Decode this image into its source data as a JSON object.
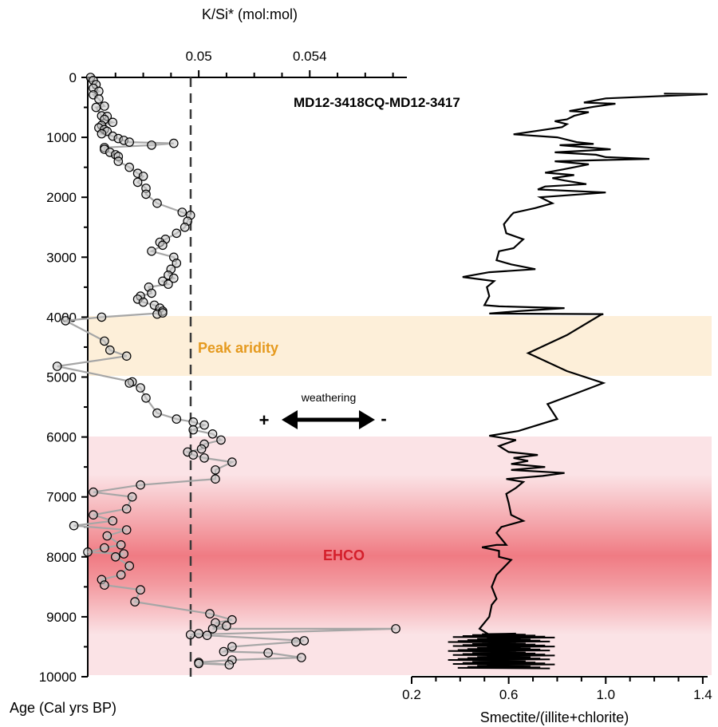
{
  "chart_data": {
    "type": "line",
    "colors": {
      "peak_band": "#fdefd9",
      "ehco_band": "#fbe3e6",
      "ehco_core": "#f07b83",
      "peak_label": "#e59a1f",
      "ehco_label": "#d41f2b",
      "ks_line": "#a6a6a6",
      "marker_fill": "#c8c8c8",
      "smectite_line": "#000000"
    },
    "y_axis": {
      "label": "Age (Cal yrs BP)",
      "range": [
        0,
        10000
      ],
      "ticks": [
        "0",
        "1000",
        "2000",
        "3000",
        "4000",
        "5000",
        "6000",
        "7000",
        "8000",
        "9000",
        "10000"
      ],
      "grid": false
    },
    "top_axis": {
      "label": "K/Si* (mol:mol)",
      "range": [
        0.046,
        0.0575
      ],
      "ticks": [
        "0.05",
        "0.054"
      ]
    },
    "bottom_axis": {
      "label": "Smectite/(illite+chlorite)",
      "range": [
        0.2,
        1.42
      ],
      "ticks": [
        "0.2",
        "0.6",
        "1.0",
        "1.4"
      ]
    },
    "annotations": {
      "core_label": "MD12-3418CQ-MD12-3417",
      "peak_aridity": "Peak aridity",
      "ehco": "EHCO",
      "weathering": "weathering",
      "plus": "+",
      "minus": "-"
    },
    "bands": [
      {
        "name": "Peak aridity",
        "from": 4000,
        "to": 5000
      },
      {
        "name": "EHCO",
        "from": 6000,
        "to": 10000,
        "core_from": 7000,
        "core_to": 9100
      }
    ],
    "dashed_reference": {
      "axis": "top",
      "value": 0.05
    },
    "series": [
      {
        "marker": "open-circle",
        "axis": "top",
        "points": [
          [
            0.0461,
            0
          ],
          [
            0.0462,
            50
          ],
          [
            0.0463,
            120
          ],
          [
            0.0462,
            180
          ],
          [
            0.0464,
            230
          ],
          [
            0.0462,
            290
          ],
          [
            0.0464,
            360
          ],
          [
            0.0466,
            480
          ],
          [
            0.0463,
            500
          ],
          [
            0.0465,
            640
          ],
          [
            0.0467,
            650
          ],
          [
            0.0466,
            700
          ],
          [
            0.0469,
            750
          ],
          [
            0.0465,
            800
          ],
          [
            0.0464,
            840
          ],
          [
            0.0466,
            870
          ],
          [
            0.0467,
            900
          ],
          [
            0.0465,
            940
          ],
          [
            0.0469,
            980
          ],
          [
            0.0471,
            1020
          ],
          [
            0.0473,
            1050
          ],
          [
            0.0475,
            1080
          ],
          [
            0.0491,
            1100
          ],
          [
            0.0483,
            1130
          ],
          [
            0.0466,
            1170
          ],
          [
            0.0466,
            1200
          ],
          [
            0.0468,
            1250
          ],
          [
            0.047,
            1290
          ],
          [
            0.0471,
            1320
          ],
          [
            0.0471,
            1400
          ],
          [
            0.0475,
            1500
          ],
          [
            0.0478,
            1600
          ],
          [
            0.048,
            1650
          ],
          [
            0.0478,
            1750
          ],
          [
            0.0481,
            1850
          ],
          [
            0.0481,
            1950
          ],
          [
            0.0485,
            2100
          ],
          [
            0.0494,
            2250
          ],
          [
            0.0497,
            2300
          ],
          [
            0.0496,
            2400
          ],
          [
            0.0495,
            2500
          ],
          [
            0.0492,
            2600
          ],
          [
            0.0488,
            2700
          ],
          [
            0.0486,
            2750
          ],
          [
            0.0487,
            2800
          ],
          [
            0.0483,
            2900
          ],
          [
            0.0491,
            3000
          ],
          [
            0.0492,
            3100
          ],
          [
            0.049,
            3200
          ],
          [
            0.0489,
            3300
          ],
          [
            0.0491,
            3350
          ],
          [
            0.0487,
            3400
          ],
          [
            0.0489,
            3450
          ],
          [
            0.0482,
            3500
          ],
          [
            0.0483,
            3600
          ],
          [
            0.0479,
            3650
          ],
          [
            0.0478,
            3700
          ],
          [
            0.048,
            3750
          ],
          [
            0.0484,
            3800
          ],
          [
            0.0486,
            3850
          ],
          [
            0.0487,
            3900
          ],
          [
            0.0485,
            3950
          ],
          [
            0.0487,
            3930
          ],
          [
            0.0465,
            4000
          ],
          [
            0.0452,
            4060
          ],
          [
            0.0466,
            4400
          ],
          [
            0.0468,
            4550
          ],
          [
            0.0474,
            4650
          ],
          [
            0.0449,
            4820
          ],
          [
            0.0476,
            5080
          ],
          [
            0.0475,
            5100
          ],
          [
            0.0479,
            5180
          ],
          [
            0.0481,
            5350
          ],
          [
            0.0485,
            5600
          ],
          [
            0.0492,
            5700
          ],
          [
            0.0498,
            5750
          ],
          [
            0.0502,
            5800
          ],
          [
            0.0498,
            5880
          ],
          [
            0.0505,
            5950
          ],
          [
            0.0508,
            6050
          ],
          [
            0.0502,
            6120
          ],
          [
            0.0501,
            6200
          ],
          [
            0.0496,
            6250
          ],
          [
            0.0498,
            6300
          ],
          [
            0.0502,
            6350
          ],
          [
            0.0512,
            6420
          ],
          [
            0.0506,
            6550
          ],
          [
            0.0506,
            6700
          ],
          [
            0.0479,
            6800
          ],
          [
            0.0462,
            6920
          ],
          [
            0.0476,
            7000
          ],
          [
            0.0474,
            7200
          ],
          [
            0.0462,
            7300
          ],
          [
            0.0469,
            7400
          ],
          [
            0.0455,
            7480
          ],
          [
            0.0474,
            7550
          ],
          [
            0.0467,
            7650
          ],
          [
            0.0472,
            7800
          ],
          [
            0.0466,
            7850
          ],
          [
            0.046,
            7920
          ],
          [
            0.0473,
            7950
          ],
          [
            0.047,
            8000
          ],
          [
            0.0475,
            8150
          ],
          [
            0.0472,
            8300
          ],
          [
            0.0465,
            8380
          ],
          [
            0.0466,
            8470
          ],
          [
            0.0479,
            8550
          ],
          [
            0.0477,
            8750
          ],
          [
            0.0504,
            8950
          ],
          [
            0.0512,
            9050
          ],
          [
            0.0506,
            9100
          ],
          [
            0.051,
            9150
          ],
          [
            0.0505,
            9200
          ],
          [
            0.0571,
            9200
          ],
          [
            0.0497,
            9300
          ],
          [
            0.05,
            9280
          ],
          [
            0.0503,
            9310
          ],
          [
            0.0538,
            9400
          ],
          [
            0.0535,
            9420
          ],
          [
            0.0512,
            9500
          ],
          [
            0.0509,
            9580
          ],
          [
            0.0525,
            9600
          ],
          [
            0.0537,
            9680
          ],
          [
            0.0512,
            9720
          ],
          [
            0.05,
            9760
          ],
          [
            0.0511,
            9800
          ],
          [
            0.05,
            9780
          ]
        ]
      },
      {
        "marker": "none",
        "axis": "bottom",
        "points": [
          [
            1.24,
            270
          ],
          [
            1.42,
            280
          ],
          [
            1.0,
            350
          ],
          [
            0.91,
            420
          ],
          [
            1.04,
            440
          ],
          [
            0.95,
            490
          ],
          [
            0.85,
            560
          ],
          [
            0.93,
            580
          ],
          [
            0.87,
            640
          ],
          [
            0.84,
            700
          ],
          [
            0.79,
            730
          ],
          [
            0.84,
            780
          ],
          [
            0.82,
            830
          ],
          [
            0.62,
            950
          ],
          [
            0.8,
            1000
          ],
          [
            0.88,
            1080
          ],
          [
            0.95,
            1110
          ],
          [
            0.81,
            1130
          ],
          [
            1.02,
            1200
          ],
          [
            0.79,
            1250
          ],
          [
            0.96,
            1290
          ],
          [
            1.0,
            1330
          ],
          [
            1.18,
            1360
          ],
          [
            0.79,
            1400
          ],
          [
            0.93,
            1450
          ],
          [
            0.83,
            1530
          ],
          [
            0.75,
            1590
          ],
          [
            0.87,
            1630
          ],
          [
            0.78,
            1680
          ],
          [
            0.83,
            1720
          ],
          [
            0.92,
            1780
          ],
          [
            0.75,
            1820
          ],
          [
            0.72,
            1870
          ],
          [
            1.0,
            1920
          ],
          [
            0.73,
            2000
          ],
          [
            0.78,
            2100
          ],
          [
            0.71,
            2180
          ],
          [
            0.62,
            2260
          ],
          [
            0.61,
            2300
          ],
          [
            0.58,
            2450
          ],
          [
            0.59,
            2600
          ],
          [
            0.66,
            2700
          ],
          [
            0.62,
            2850
          ],
          [
            0.56,
            2900
          ],
          [
            0.55,
            3050
          ],
          [
            0.61,
            3120
          ],
          [
            0.71,
            3200
          ],
          [
            0.52,
            3250
          ],
          [
            0.41,
            3330
          ],
          [
            0.54,
            3400
          ],
          [
            0.51,
            3500
          ],
          [
            0.52,
            3650
          ],
          [
            0.5,
            3800
          ],
          [
            0.56,
            3820
          ],
          [
            0.83,
            3850
          ],
          [
            0.64,
            3900
          ],
          [
            0.52,
            3940
          ],
          [
            0.99,
            3950
          ],
          [
            0.98,
            3960
          ],
          [
            0.84,
            4300
          ],
          [
            0.68,
            4600
          ],
          [
            0.84,
            4900
          ],
          [
            0.99,
            5100
          ],
          [
            0.86,
            5300
          ],
          [
            0.76,
            5450
          ],
          [
            0.8,
            5700
          ],
          [
            0.64,
            5900
          ],
          [
            0.52,
            5980
          ],
          [
            0.63,
            6050
          ],
          [
            0.56,
            6150
          ],
          [
            0.6,
            6250
          ],
          [
            0.72,
            6300
          ],
          [
            0.62,
            6350
          ],
          [
            0.68,
            6400
          ],
          [
            0.61,
            6450
          ],
          [
            0.75,
            6500
          ],
          [
            0.61,
            6550
          ],
          [
            0.83,
            6600
          ],
          [
            0.74,
            6650
          ],
          [
            0.59,
            6700
          ],
          [
            0.66,
            6750
          ],
          [
            0.63,
            6850
          ],
          [
            0.59,
            6950
          ],
          [
            0.6,
            7100
          ],
          [
            0.61,
            7300
          ],
          [
            0.66,
            7400
          ],
          [
            0.57,
            7500
          ],
          [
            0.55,
            7600
          ],
          [
            0.59,
            7800
          ],
          [
            0.55,
            7800
          ],
          [
            0.49,
            7840
          ],
          [
            0.56,
            7900
          ],
          [
            0.56,
            8000
          ],
          [
            0.61,
            8050
          ],
          [
            0.55,
            8300
          ],
          [
            0.53,
            8500
          ],
          [
            0.55,
            8700
          ],
          [
            0.53,
            8800
          ],
          [
            0.52,
            9000
          ],
          [
            0.48,
            9200
          ],
          [
            0.52,
            9300
          ],
          [
            0.52,
            9450
          ]
        ]
      }
    ]
  }
}
